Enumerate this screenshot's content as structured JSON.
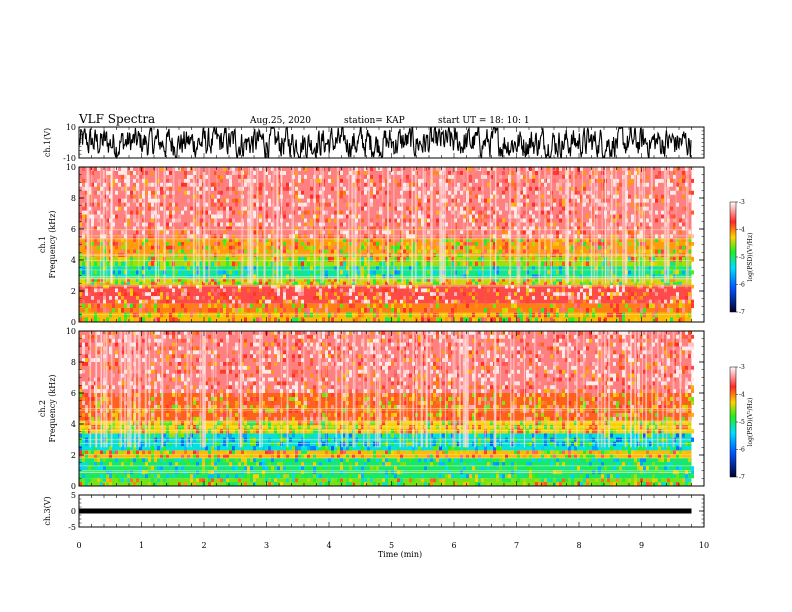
{
  "header": {
    "title": "VLF Spectra",
    "date": "Aug.25, 2020",
    "station": "station= KAP",
    "start_ut": "start  UT  =   18: 10: 1"
  },
  "chart_data": [
    {
      "id": "ch1-waveform",
      "type": "line",
      "ylabel": "ch.1(V)",
      "ylim": [
        -10,
        10
      ],
      "yticks": [
        "10",
        "-10"
      ],
      "xlim": [
        0,
        10
      ],
      "data_xlim": [
        0,
        9.8
      ],
      "note": "dense waveform oscillating across full range"
    },
    {
      "id": "ch1-spectrogram",
      "type": "heatmap",
      "ylabel": "ch.1\nFrequency  (kHz)",
      "ylim": [
        0,
        10
      ],
      "yticks": [
        "0",
        "2",
        "4",
        "6",
        "8",
        "10"
      ],
      "xlim": [
        0,
        10
      ],
      "data_xlim": [
        0,
        9.8
      ],
      "bands_khz": [
        {
          "from": 0,
          "to": 0.6,
          "level": -4.2
        },
        {
          "from": 0.6,
          "to": 1.2,
          "level": -4.0
        },
        {
          "from": 1.2,
          "to": 2.4,
          "level": -3.6
        },
        {
          "from": 2.4,
          "to": 2.8,
          "level": -4.4
        },
        {
          "from": 2.8,
          "to": 3.6,
          "level": -5.1
        },
        {
          "from": 3.6,
          "to": 4.2,
          "level": -4.5
        },
        {
          "from": 4.2,
          "to": 5.4,
          "level": -4.1
        },
        {
          "from": 5.4,
          "to": 10,
          "level": -3.4
        }
      ],
      "colorbar": {
        "label": "log(PSD)(V²/Hz)",
        "range": [
          -7,
          -3
        ],
        "ticks": [
          "-3",
          "-4",
          "-5",
          "-6",
          "-7"
        ]
      }
    },
    {
      "id": "ch2-spectrogram",
      "type": "heatmap",
      "ylabel": "ch.2\nFrequency  (kHz)",
      "ylim": [
        0,
        10
      ],
      "yticks": [
        "0",
        "2",
        "4",
        "6",
        "8",
        "10"
      ],
      "xlim": [
        0,
        10
      ],
      "data_xlim": [
        0,
        9.8
      ],
      "bands_khz": [
        {
          "from": 0,
          "to": 0.5,
          "level": -4.6
        },
        {
          "from": 0.5,
          "to": 1.8,
          "level": -5.0
        },
        {
          "from": 1.8,
          "to": 2.3,
          "level": -4.2
        },
        {
          "from": 2.3,
          "to": 3.4,
          "level": -5.3
        },
        {
          "from": 3.4,
          "to": 4.2,
          "level": -4.3
        },
        {
          "from": 4.2,
          "to": 6.0,
          "level": -3.9
        },
        {
          "from": 6.0,
          "to": 10,
          "level": -3.4
        }
      ],
      "colorbar": {
        "label": "log(PSD)(V²/Hz)",
        "range": [
          -7,
          -3
        ],
        "ticks": [
          "-3",
          "-4",
          "-5",
          "-6",
          "-7"
        ]
      }
    },
    {
      "id": "ch3-waveform",
      "type": "line",
      "ylabel": "ch.3(V)",
      "ylim": [
        -5,
        5
      ],
      "yticks": [
        "5",
        "0",
        "-5"
      ],
      "xlim": [
        0,
        10
      ],
      "data_xlim": [
        0,
        9.8
      ],
      "level_v": 0
    }
  ],
  "xaxis": {
    "label": "Time  (min)",
    "ticks": [
      "0",
      "1",
      "2",
      "3",
      "4",
      "5",
      "6",
      "7",
      "8",
      "9",
      "10"
    ]
  },
  "colors": {
    "spectrogram_bg": "#ee3a2a",
    "line": "#000000"
  }
}
